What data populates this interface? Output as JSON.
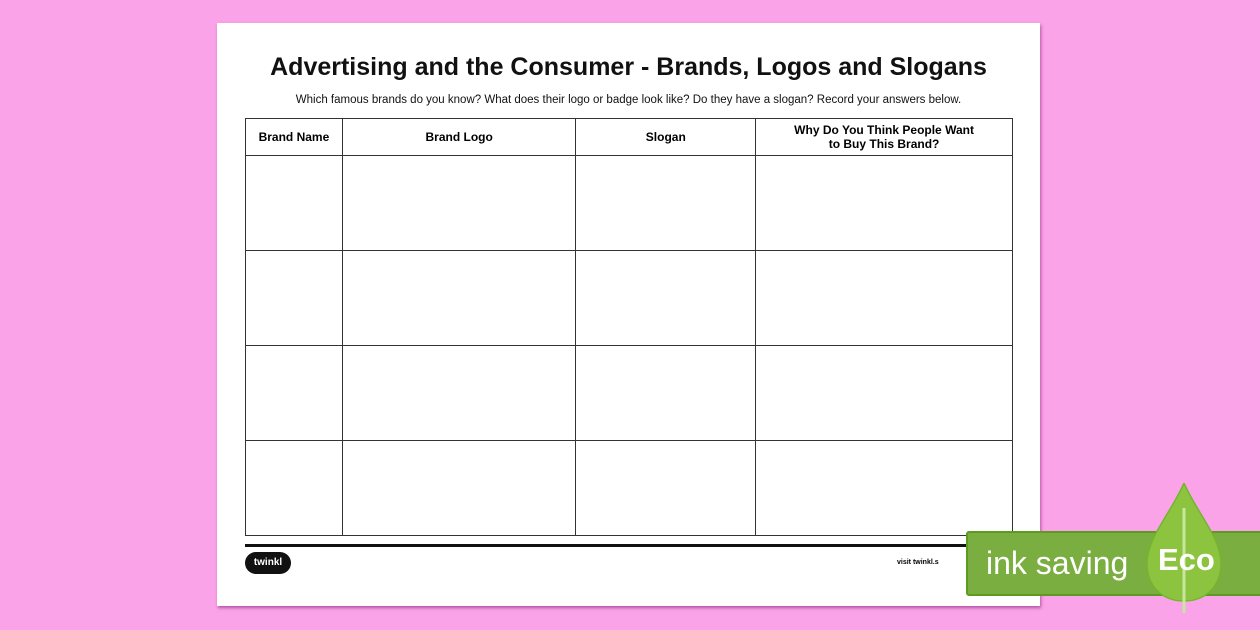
{
  "worksheet": {
    "title": "Advertising and the Consumer - Brands, Logos and Slogans",
    "instructions": "Which famous brands do you know? What does their logo or badge look like? Do they have a slogan? Record your answers below.",
    "columns": [
      "Brand Name",
      "Brand Logo",
      "Slogan",
      "Why Do You Think People Want to Buy This Brand?"
    ],
    "rows": 4
  },
  "footer": {
    "logo": "twinkl",
    "visit": "visit twinkl.s"
  },
  "badge": {
    "text": "ink saving",
    "eco": "Eco",
    "color": "#7bae41"
  }
}
